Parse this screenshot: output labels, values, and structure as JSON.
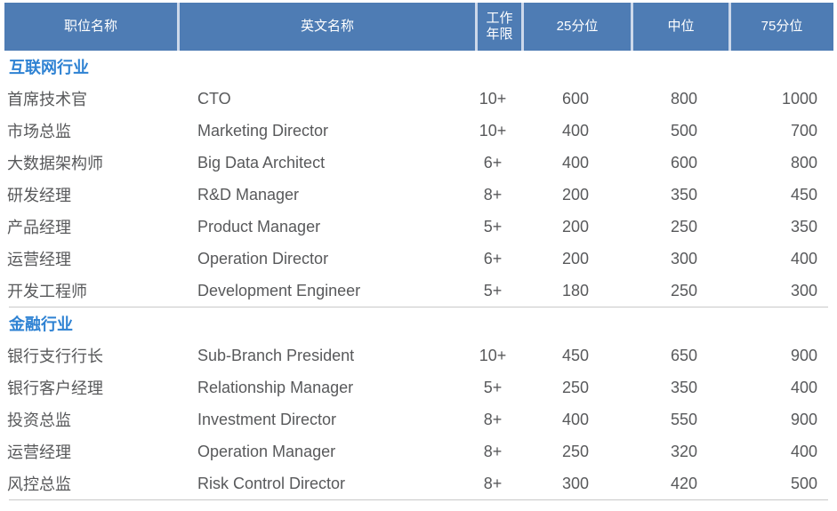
{
  "chart_data": {
    "type": "table",
    "columns": [
      {
        "key": "position",
        "label": "职位名称"
      },
      {
        "key": "english_name",
        "label": "英文名称"
      },
      {
        "key": "work_years",
        "label": "工作\n年限"
      },
      {
        "key": "p25",
        "label": "25分位"
      },
      {
        "key": "median",
        "label": "中位"
      },
      {
        "key": "p75",
        "label": "75分位"
      }
    ],
    "sections": [
      {
        "title": "互联网行业",
        "rows": [
          [
            "首席技术官",
            "CTO",
            "10+",
            600,
            800,
            1000
          ],
          [
            "市场总监",
            "Marketing Director",
            "10+",
            400,
            500,
            700
          ],
          [
            "大数据架构师",
            "Big Data Architect",
            "6+",
            400,
            600,
            800
          ],
          [
            "研发经理",
            "R&D Manager",
            "8+",
            200,
            350,
            450
          ],
          [
            "产品经理",
            "Product Manager",
            "5+",
            200,
            250,
            350
          ],
          [
            "运营经理",
            "Operation Director",
            "6+",
            200,
            300,
            400
          ],
          [
            "开发工程师",
            "Development Engineer",
            "5+",
            180,
            250,
            300
          ]
        ]
      },
      {
        "title": "金融行业",
        "rows": [
          [
            "银行支行行长",
            "Sub-Branch President",
            "10+",
            450,
            650,
            900
          ],
          [
            "银行客户经理",
            "Relationship Manager",
            "5+",
            250,
            350,
            400
          ],
          [
            "投资总监",
            "Investment Director",
            "8+",
            400,
            550,
            900
          ],
          [
            "运营经理",
            "Operation Manager",
            "8+",
            250,
            320,
            400
          ],
          [
            "风控总监",
            "Risk Control Director",
            "8+",
            300,
            420,
            500
          ]
        ]
      }
    ]
  },
  "colors": {
    "header_background": "#4e7cb4",
    "header_divider": "#ccd8ea",
    "header_text": "#ffffff",
    "section_title_text": "#2e82d3",
    "body_text": "#58595b",
    "section_rule": "#c8c8c8"
  }
}
